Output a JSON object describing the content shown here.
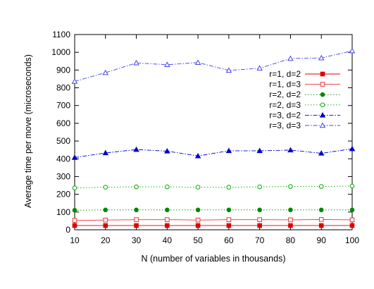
{
  "chart_data": {
    "type": "line",
    "title": "",
    "xlabel": "N (number of variables in thousands)",
    "ylabel": "Average time per move (microseconds)",
    "xlim": [
      10,
      100
    ],
    "ylim": [
      0,
      1100
    ],
    "x_ticks": [
      10,
      20,
      30,
      40,
      50,
      60,
      70,
      80,
      90,
      100
    ],
    "y_ticks": [
      0,
      100,
      200,
      300,
      400,
      500,
      600,
      700,
      800,
      900,
      1000,
      1100
    ],
    "grid": false,
    "legend_position": "right",
    "x": [
      10,
      20,
      30,
      40,
      50,
      60,
      70,
      80,
      90,
      100
    ],
    "series": [
      {
        "name": "r=1, d=2",
        "color": "#dd0000",
        "marker": "filled-square",
        "dash": "solid",
        "values": [
          24,
          24,
          24,
          24,
          24,
          24,
          24,
          24,
          24,
          24
        ]
      },
      {
        "name": "r=1, d=3",
        "color": "#ee3333",
        "marker": "open-square",
        "dash": "solid",
        "values": [
          53,
          55,
          57,
          57,
          55,
          57,
          57,
          56,
          58,
          56
        ]
      },
      {
        "name": "r=2, d=2",
        "color": "#008800",
        "marker": "filled-circle",
        "dash": "dotted",
        "values": [
          110,
          112,
          112,
          112,
          112,
          112,
          112,
          112,
          112,
          112
        ]
      },
      {
        "name": "r=2, d=3",
        "color": "#00aa00",
        "marker": "open-circle",
        "dash": "dotted",
        "values": [
          236,
          240,
          242,
          242,
          240,
          240,
          242,
          244,
          244,
          246
        ]
      },
      {
        "name": "r=3, d=2",
        "color": "#0000cc",
        "marker": "filled-triangle",
        "dash": "dashdot",
        "values": [
          407,
          433,
          452,
          443,
          416,
          445,
          445,
          449,
          431,
          456
        ]
      },
      {
        "name": "r=3, d=3",
        "color": "#4444ee",
        "marker": "open-triangle",
        "dash": "dashdot",
        "values": [
          836,
          885,
          940,
          930,
          942,
          898,
          910,
          965,
          968,
          1008
        ]
      }
    ]
  }
}
